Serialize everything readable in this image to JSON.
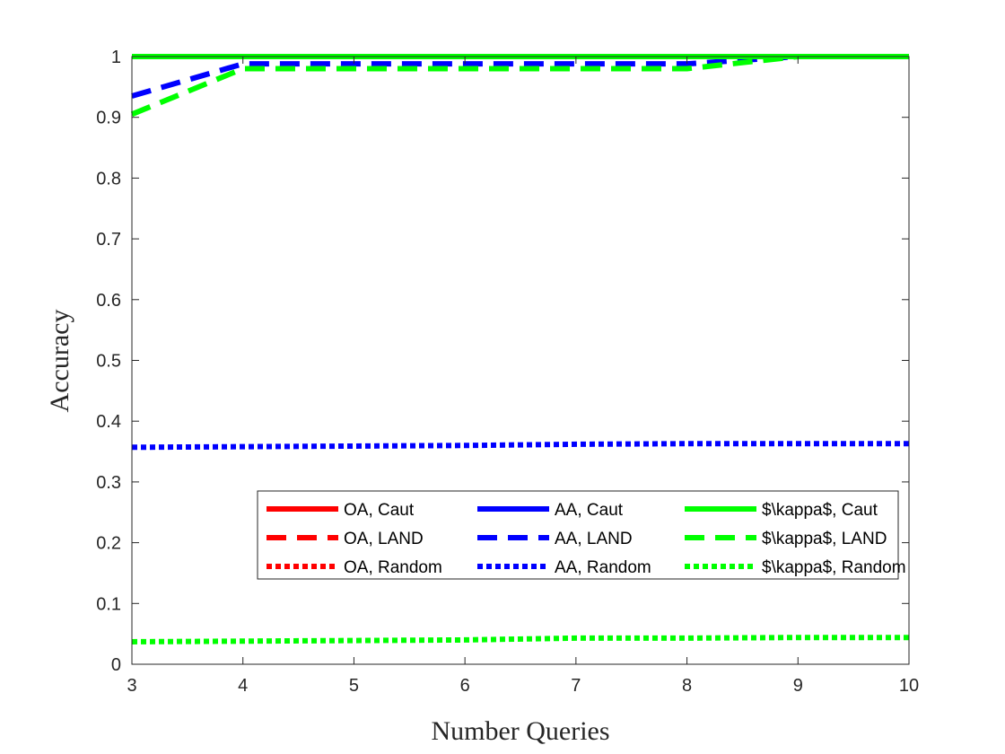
{
  "chart_data": {
    "type": "line",
    "title": "",
    "xlabel": "Number Queries",
    "ylabel": "Accuracy",
    "xlim": [
      3,
      10
    ],
    "ylim": [
      0,
      1
    ],
    "xticks": [
      3,
      4,
      5,
      6,
      7,
      8,
      9,
      10
    ],
    "yticks": [
      0,
      0.1,
      0.2,
      0.3,
      0.4,
      0.5,
      0.6,
      0.7,
      0.8,
      0.9,
      1
    ],
    "ytick_labels": [
      "0",
      "0.1",
      "0.2",
      "0.3",
      "0.4",
      "0.5",
      "0.6",
      "0.7",
      "0.8",
      "0.9",
      "1"
    ],
    "grid": false,
    "legend_position": "lower-right",
    "x": [
      3,
      4,
      5,
      6,
      7,
      8,
      9,
      10
    ],
    "series": [
      {
        "name": "OA, Caut",
        "color": "#ff0000",
        "style": "solid",
        "values": [
          1,
          1,
          1,
          1,
          1,
          1,
          1,
          1
        ]
      },
      {
        "name": "AA, Caut",
        "color": "#0000ff",
        "style": "solid",
        "values": [
          1,
          1,
          1,
          1,
          1,
          1,
          1,
          1
        ]
      },
      {
        "name": "$\\kappa$, Caut",
        "color": "#00ff00",
        "style": "solid",
        "values": [
          1,
          1,
          1,
          1,
          1,
          1,
          1,
          1
        ]
      },
      {
        "name": "OA, LAND",
        "color": "#ff0000",
        "style": "dashed",
        "values": [
          1,
          1,
          1,
          1,
          1,
          1,
          1,
          1
        ]
      },
      {
        "name": "AA, LAND",
        "color": "#0000ff",
        "style": "dashed",
        "values": [
          0.935,
          0.988,
          0.988,
          0.988,
          0.988,
          0.988,
          1,
          1
        ]
      },
      {
        "name": "$\\kappa$, LAND",
        "color": "#00ff00",
        "style": "dashed",
        "values": [
          0.905,
          0.98,
          0.98,
          0.98,
          0.98,
          0.98,
          1,
          1
        ]
      },
      {
        "name": "OA, Random",
        "color": "#ff0000",
        "style": "dotted",
        "values": [
          1,
          1,
          1,
          1,
          1,
          1,
          1,
          1
        ]
      },
      {
        "name": "AA, Random",
        "color": "#0000ff",
        "style": "dotted",
        "values": [
          0.357,
          0.358,
          0.359,
          0.36,
          0.362,
          0.363,
          0.363,
          0.363
        ]
      },
      {
        "name": "$\\kappa$, Random",
        "color": "#00ff00",
        "style": "dotted",
        "values": [
          0.037,
          0.038,
          0.039,
          0.04,
          0.043,
          0.043,
          0.044,
          0.044
        ]
      }
    ]
  }
}
